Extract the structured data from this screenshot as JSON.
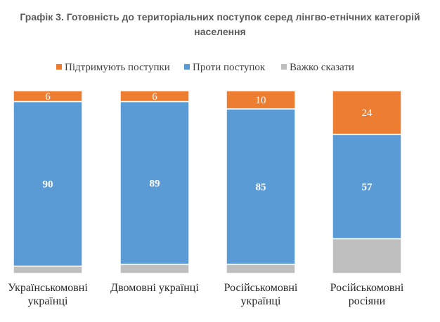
{
  "chart_data": {
    "type": "bar",
    "stacked": true,
    "title_lines": [
      "Графік 3. Готовність до територіальних поступок серед лінгво-етнічних категорій",
      "населення"
    ],
    "categories": [
      [
        "Українськомовні",
        "українці"
      ],
      [
        "Двомовні українці"
      ],
      [
        "Російськомовні",
        "українці"
      ],
      [
        "Російськомовні",
        "росіяни"
      ]
    ],
    "series": [
      {
        "name": "Підтримують поступки",
        "color": "#ed7d31",
        "values": [
          6,
          6,
          10,
          24
        ]
      },
      {
        "name": "Проти поступок",
        "color": "#5b9bd5",
        "values": [
          90,
          89,
          85,
          57
        ]
      },
      {
        "name": "Важко сказати",
        "color": "#bfbfbf",
        "values": [
          4,
          5,
          5,
          19
        ]
      }
    ],
    "data_labels_series": [
      "Підтримують поступки",
      "Проти поступок"
    ],
    "ylim": [
      0,
      100
    ],
    "legend_position": "top",
    "grid": false
  }
}
